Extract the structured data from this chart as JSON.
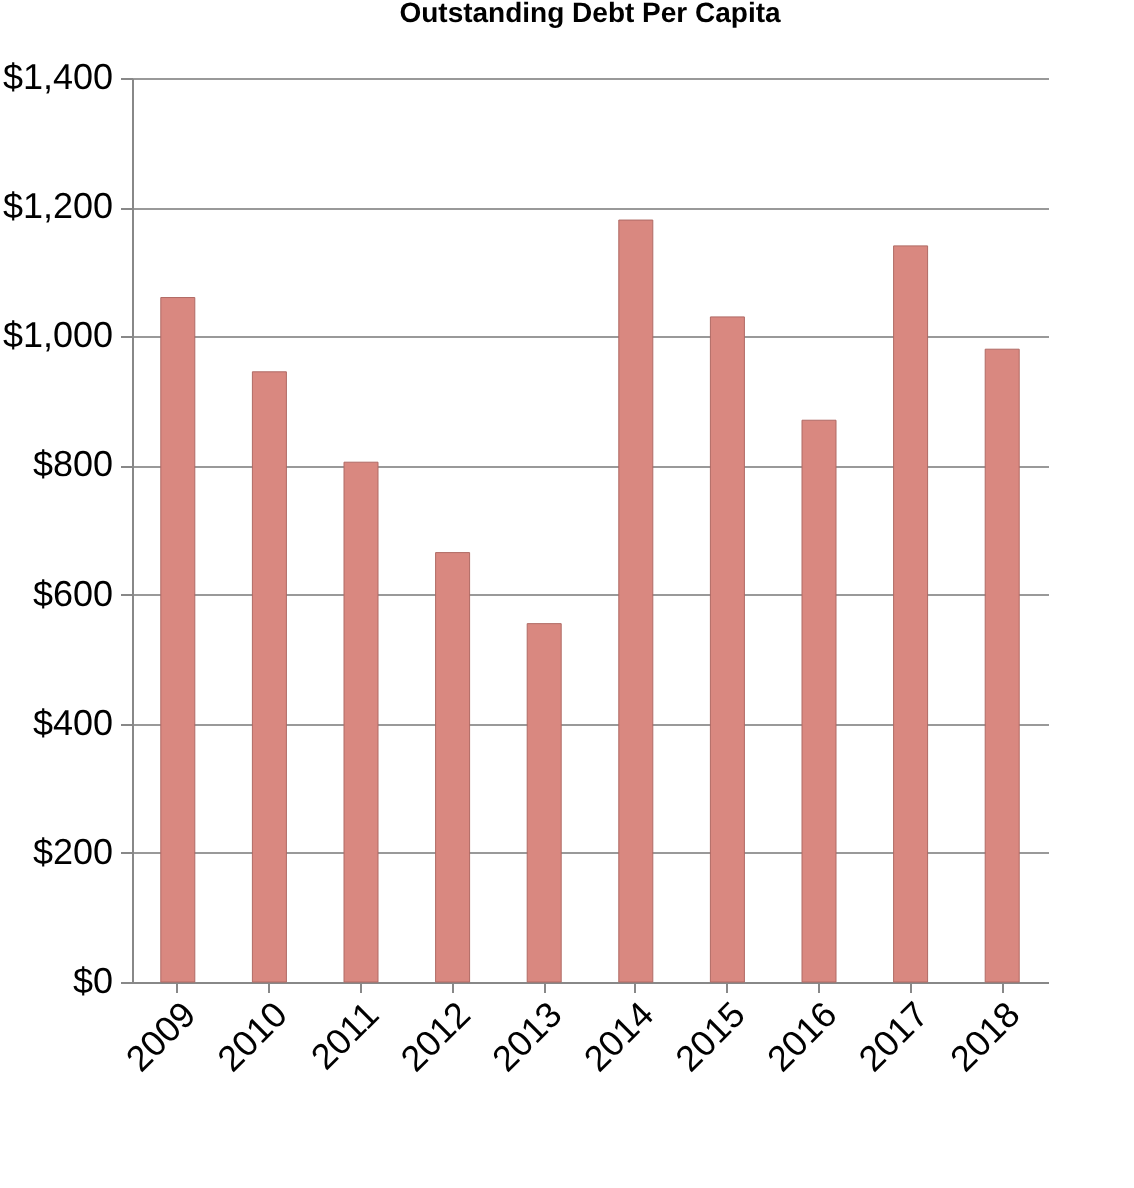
{
  "chart_data": {
    "type": "bar",
    "title": "Outstanding Debt Per Capita",
    "categories": [
      "2009",
      "2010",
      "2011",
      "2012",
      "2013",
      "2014",
      "2015",
      "2016",
      "2017",
      "2018"
    ],
    "values": [
      1060,
      945,
      805,
      665,
      555,
      1180,
      1030,
      870,
      1140,
      980
    ],
    "color": "#d98880",
    "ylim": [
      0,
      1400
    ],
    "yticks": [
      {
        "value": 0,
        "label": "$0"
      },
      {
        "value": 200,
        "label": "$200"
      },
      {
        "value": 400,
        "label": "$400"
      },
      {
        "value": 600,
        "label": "$600"
      },
      {
        "value": 800,
        "label": "$800"
      },
      {
        "value": 1000,
        "label": "$1,000"
      },
      {
        "value": 1200,
        "label": "$1,200"
      },
      {
        "value": 1400,
        "label": "$1,400"
      }
    ],
    "grid": "y"
  }
}
